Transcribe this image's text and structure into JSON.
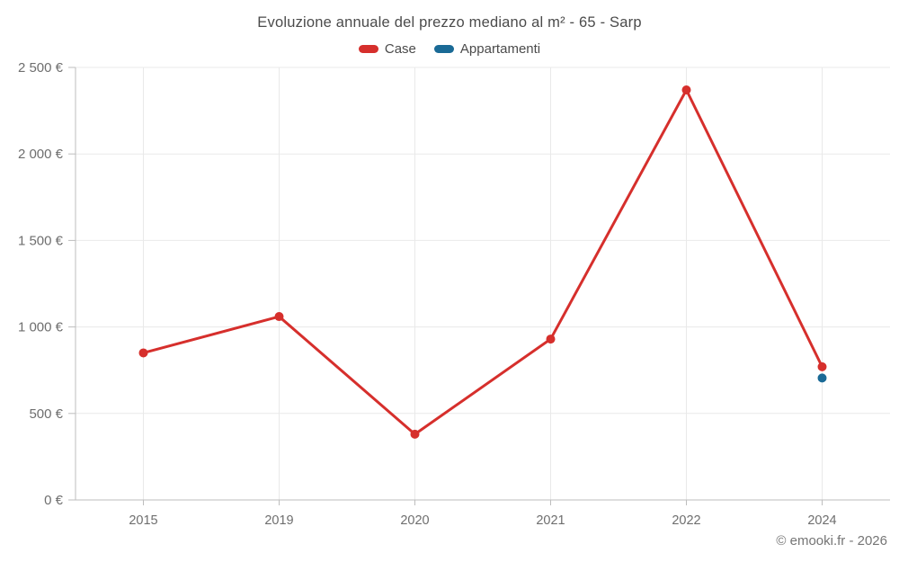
{
  "page": {
    "watermark": "© emooki.fr - 2026"
  },
  "chart_data": {
    "type": "line",
    "title": "Evoluzione annuale del prezzo mediano al m² - 65 - Sarp",
    "categories": [
      "2015",
      "2019",
      "2020",
      "2021",
      "2022",
      "2024"
    ],
    "series": [
      {
        "name": "Case",
        "color": "#d62f2c",
        "values": [
          850,
          1060,
          380,
          930,
          2370,
          770
        ]
      },
      {
        "name": "Appartamenti",
        "color": "#1a6a96",
        "values": [
          null,
          null,
          null,
          null,
          null,
          705
        ]
      }
    ],
    "ylim": [
      0,
      2500
    ],
    "yticks": [
      0,
      500,
      1000,
      1500,
      2000,
      2500
    ],
    "ytick_labels": [
      "0 €",
      "500 €",
      "1 000 €",
      "1 500 €",
      "2 000 €",
      "2 500 €"
    ],
    "grid": true,
    "legend_position": "top",
    "colors": {
      "grid": "#e9e9e9",
      "axis": "#bdbdbd",
      "tick_text": "#6e6e6e"
    }
  }
}
